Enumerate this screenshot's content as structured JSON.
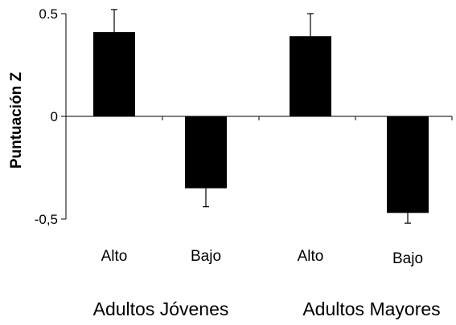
{
  "chart_data": {
    "type": "bar",
    "title": "",
    "xlabel": "",
    "ylabel": "Puntuación Z",
    "ylim": [
      -0.5,
      0.5
    ],
    "yticks": [
      {
        "value": 0.5,
        "label": "0.5"
      },
      {
        "value": 0,
        "label": "0"
      },
      {
        "value": -0.5,
        "label": "-0,5"
      }
    ],
    "categories": [
      "Alto",
      "Bajo",
      "Alto",
      "Bajo"
    ],
    "groups": [
      "Adultos Jóvenes",
      "Adultos Mayores"
    ],
    "values": [
      0.41,
      -0.35,
      0.39,
      -0.47
    ],
    "error_bars": [
      0.11,
      0.09,
      0.11,
      0.05
    ],
    "bar_color": "#000000",
    "grid": false,
    "legend": "none"
  }
}
